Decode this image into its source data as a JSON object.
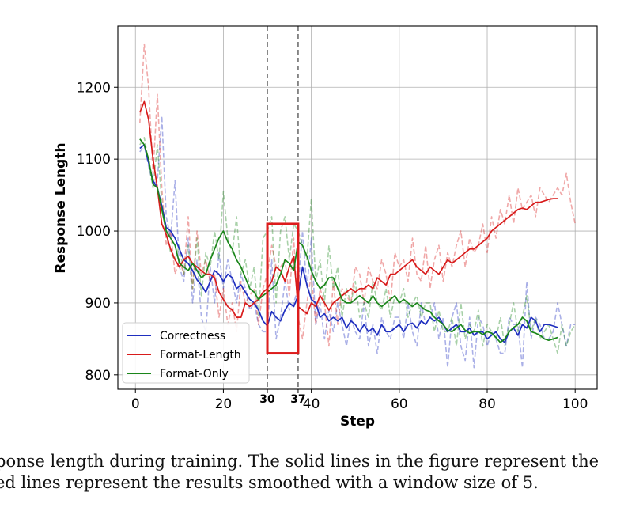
{
  "chart_data": {
    "type": "line",
    "xlabel": "Step",
    "ylabel": "Response Length",
    "xlim": [
      -4,
      105
    ],
    "ylim": [
      780,
      1285
    ],
    "x_ticks": [
      0,
      20,
      40,
      60,
      80,
      100
    ],
    "y_ticks": [
      800,
      900,
      1000,
      1100,
      1200
    ],
    "special_x_ticks": [
      30,
      37
    ],
    "vlines": [
      30,
      37
    ],
    "highlight_box": {
      "x": [
        30,
        37
      ],
      "y": [
        830,
        1010
      ],
      "color": "#dd1c1c"
    },
    "grid": true,
    "legend": {
      "placement": "lower-left",
      "entries": [
        "Correctness",
        "Format-Length",
        "Format-Only"
      ]
    },
    "series": [
      {
        "name": "Correctness",
        "color": "#1f2fbf",
        "smoothed_x": [
          1,
          2,
          3,
          4,
          5,
          6,
          7,
          8,
          9,
          10,
          11,
          12,
          13,
          14,
          15,
          16,
          17,
          18,
          19,
          20,
          21,
          22,
          23,
          24,
          25,
          26,
          27,
          28,
          29,
          30,
          31,
          32,
          33,
          34,
          35,
          36,
          37,
          38,
          39,
          40,
          41,
          42,
          43,
          44,
          45,
          46,
          47,
          48,
          49,
          50,
          51,
          52,
          53,
          54,
          55,
          56,
          57,
          58,
          59,
          60,
          61,
          62,
          63,
          64,
          65,
          66,
          67,
          68,
          69,
          70,
          71,
          72,
          73,
          74,
          75,
          76,
          77,
          78,
          79,
          80,
          81,
          82,
          83,
          84,
          85,
          86,
          87,
          88,
          89,
          90,
          91,
          92,
          93,
          94,
          95,
          96
        ],
        "smoothed_y": [
          1115,
          1120,
          1095,
          1070,
          1060,
          1035,
          1005,
          1000,
          990,
          975,
          960,
          955,
          945,
          932,
          925,
          915,
          930,
          945,
          940,
          930,
          940,
          935,
          920,
          925,
          915,
          905,
          900,
          890,
          875,
          868,
          888,
          880,
          875,
          890,
          900,
          895,
          910,
          950,
          925,
          905,
          900,
          880,
          885,
          875,
          880,
          875,
          880,
          865,
          875,
          870,
          860,
          870,
          860,
          865,
          855,
          870,
          860,
          860,
          865,
          870,
          860,
          870,
          872,
          865,
          875,
          870,
          880,
          875,
          880,
          870,
          860,
          865,
          870,
          860,
          860,
          865,
          855,
          860,
          860,
          850,
          855,
          860,
          850,
          845,
          860,
          865,
          855,
          870,
          865,
          880,
          875,
          860,
          870,
          870,
          868,
          866
        ],
        "raw_x": [
          1,
          2,
          3,
          4,
          5,
          6,
          7,
          8,
          9,
          10,
          11,
          12,
          13,
          14,
          15,
          16,
          17,
          18,
          19,
          20,
          21,
          22,
          23,
          24,
          25,
          26,
          27,
          28,
          29,
          30,
          31,
          32,
          33,
          34,
          35,
          36,
          37,
          38,
          39,
          40,
          41,
          42,
          43,
          44,
          45,
          46,
          47,
          48,
          49,
          50,
          51,
          52,
          53,
          54,
          55,
          56,
          57,
          58,
          59,
          60,
          61,
          62,
          63,
          64,
          65,
          66,
          67,
          68,
          69,
          70,
          71,
          72,
          73,
          74,
          75,
          76,
          77,
          78,
          79,
          80,
          81,
          82,
          83,
          84,
          85,
          86,
          87,
          88,
          89,
          90,
          91,
          92,
          93,
          94,
          95,
          96,
          97,
          98,
          99,
          100
        ],
        "raw_y": [
          1110,
          1120,
          1090,
          1065,
          1070,
          1160,
          1020,
          990,
          1070,
          950,
          930,
          990,
          900,
          960,
          880,
          860,
          950,
          900,
          970,
          920,
          960,
          930,
          900,
          940,
          920,
          890,
          900,
          870,
          860,
          860,
          960,
          850,
          880,
          930,
          890,
          900,
          920,
          1000,
          920,
          990,
          870,
          900,
          850,
          890,
          860,
          900,
          870,
          840,
          880,
          860,
          850,
          900,
          840,
          870,
          830,
          880,
          860,
          850,
          880,
          880,
          850,
          900,
          860,
          840,
          900,
          870,
          880,
          900,
          850,
          880,
          810,
          880,
          900,
          840,
          820,
          880,
          810,
          880,
          870,
          840,
          860,
          850,
          830,
          830,
          880,
          870,
          870,
          810,
          930,
          850,
          880,
          870,
          850,
          850,
          860,
          900,
          870,
          840,
          870,
          870
        ]
      },
      {
        "name": "Format-Length",
        "color": "#d81b1b",
        "smoothed_x": [
          1,
          2,
          3,
          4,
          5,
          6,
          7,
          8,
          9,
          10,
          11,
          12,
          13,
          14,
          15,
          16,
          17,
          18,
          19,
          20,
          21,
          22,
          23,
          24,
          25,
          26,
          27,
          28,
          29,
          30,
          31,
          32,
          33,
          34,
          35,
          36,
          37,
          38,
          39,
          40,
          41,
          42,
          43,
          44,
          45,
          46,
          47,
          48,
          49,
          50,
          51,
          52,
          53,
          54,
          55,
          56,
          57,
          58,
          59,
          60,
          61,
          62,
          63,
          64,
          65,
          66,
          67,
          68,
          69,
          70,
          71,
          72,
          73,
          74,
          75,
          76,
          77,
          78,
          79,
          80,
          81,
          82,
          83,
          84,
          85,
          86,
          87,
          88,
          89,
          90,
          91,
          92,
          93,
          94,
          95,
          96
        ],
        "smoothed_y": [
          1165,
          1180,
          1155,
          1100,
          1060,
          1010,
          995,
          975,
          960,
          950,
          960,
          965,
          955,
          950,
          945,
          940,
          940,
          935,
          915,
          905,
          895,
          890,
          880,
          880,
          900,
          895,
          900,
          905,
          915,
          920,
          930,
          950,
          945,
          930,
          950,
          965,
          895,
          890,
          885,
          900,
          895,
          910,
          900,
          890,
          900,
          905,
          910,
          915,
          920,
          915,
          920,
          920,
          925,
          920,
          935,
          930,
          925,
          940,
          940,
          945,
          950,
          955,
          960,
          950,
          945,
          940,
          950,
          945,
          940,
          950,
          960,
          955,
          960,
          965,
          970,
          975,
          975,
          980,
          985,
          990,
          1000,
          1005,
          1010,
          1015,
          1020,
          1025,
          1030,
          1032,
          1030,
          1035,
          1040,
          1040,
          1042,
          1044,
          1045,
          1045
        ],
        "raw_x": [
          1,
          2,
          3,
          4,
          5,
          6,
          7,
          8,
          9,
          10,
          11,
          12,
          13,
          14,
          15,
          16,
          17,
          18,
          19,
          20,
          21,
          22,
          23,
          24,
          25,
          26,
          27,
          28,
          29,
          30,
          31,
          32,
          33,
          34,
          35,
          36,
          37,
          38,
          39,
          40,
          41,
          42,
          43,
          44,
          45,
          46,
          47,
          48,
          49,
          50,
          51,
          52,
          53,
          54,
          55,
          56,
          57,
          58,
          59,
          60,
          61,
          62,
          63,
          64,
          65,
          66,
          67,
          68,
          69,
          70,
          71,
          72,
          73,
          74,
          75,
          76,
          77,
          78,
          79,
          80,
          81,
          82,
          83,
          84,
          85,
          86,
          87,
          88,
          89,
          90,
          91,
          92,
          93,
          94,
          95,
          96,
          97,
          98,
          99,
          100
        ],
        "raw_y": [
          1150,
          1260,
          1200,
          1080,
          1190,
          1060,
          980,
          1000,
          940,
          960,
          940,
          1020,
          920,
          1000,
          940,
          960,
          930,
          940,
          880,
          920,
          870,
          900,
          860,
          930,
          900,
          910,
          920,
          870,
          920,
          940,
          980,
          950,
          950,
          960,
          910,
          990,
          880,
          850,
          900,
          940,
          870,
          920,
          900,
          840,
          930,
          870,
          920,
          910,
          900,
          950,
          940,
          900,
          950,
          930,
          920,
          960,
          940,
          900,
          970,
          950,
          960,
          930,
          990,
          940,
          930,
          980,
          920,
          960,
          980,
          930,
          970,
          950,
          980,
          1000,
          950,
          990,
          970,
          980,
          1010,
          970,
          1020,
          990,
          1030,
          1010,
          1050,
          1010,
          1060,
          1030,
          1040,
          1050,
          1020,
          1060,
          1050,
          1040,
          1050,
          1060,
          1050,
          1080,
          1040,
          1010
        ]
      },
      {
        "name": "Format-Only",
        "color": "#1a861a",
        "smoothed_x": [
          1,
          2,
          3,
          4,
          5,
          6,
          7,
          8,
          9,
          10,
          11,
          12,
          13,
          14,
          15,
          16,
          17,
          18,
          19,
          20,
          21,
          22,
          23,
          24,
          25,
          26,
          27,
          28,
          29,
          30,
          31,
          32,
          33,
          34,
          35,
          36,
          37,
          38,
          39,
          40,
          41,
          42,
          43,
          44,
          45,
          46,
          47,
          48,
          49,
          50,
          51,
          52,
          53,
          54,
          55,
          56,
          57,
          58,
          59,
          60,
          61,
          62,
          63,
          64,
          65,
          66,
          67,
          68,
          69,
          70,
          71,
          72,
          73,
          74,
          75,
          76,
          77,
          78,
          79,
          80,
          81,
          82,
          83,
          84,
          85,
          86,
          87,
          88,
          89,
          90,
          91,
          92,
          93,
          94,
          95,
          96
        ],
        "smoothed_y": [
          1128,
          1120,
          1100,
          1065,
          1060,
          1030,
          1000,
          990,
          980,
          955,
          950,
          945,
          955,
          945,
          935,
          940,
          960,
          975,
          990,
          1000,
          985,
          975,
          960,
          950,
          935,
          920,
          915,
          905,
          910,
          915,
          920,
          925,
          940,
          960,
          955,
          945,
          985,
          980,
          965,
          945,
          930,
          920,
          925,
          935,
          935,
          920,
          905,
          900,
          900,
          905,
          910,
          905,
          900,
          910,
          900,
          895,
          900,
          905,
          910,
          900,
          905,
          900,
          895,
          900,
          895,
          890,
          888,
          880,
          875,
          870,
          862,
          860,
          865,
          870,
          862,
          858,
          860,
          860,
          856,
          860,
          858,
          852,
          845,
          850,
          860,
          866,
          870,
          880,
          875,
          860,
          858,
          855,
          850,
          848,
          850,
          852
        ],
        "raw_x": [
          1,
          2,
          3,
          4,
          5,
          6,
          7,
          8,
          9,
          10,
          11,
          12,
          13,
          14,
          15,
          16,
          17,
          18,
          19,
          20,
          21,
          22,
          23,
          24,
          25,
          26,
          27,
          28,
          29,
          30,
          31,
          32,
          33,
          34,
          35,
          36,
          37,
          38,
          39,
          40,
          41,
          42,
          43,
          44,
          45,
          46,
          47,
          48,
          49,
          50,
          51,
          52,
          53,
          54,
          55,
          56,
          57,
          58,
          59,
          60,
          61,
          62,
          63,
          64,
          65,
          66,
          67,
          68,
          69,
          70,
          71,
          72,
          73,
          74,
          75,
          76,
          77,
          78,
          79,
          80,
          81,
          82,
          83,
          84,
          85,
          86,
          87,
          88,
          89,
          90,
          91,
          92,
          93,
          94,
          95,
          96,
          97,
          98,
          99,
          100
        ],
        "raw_y": [
          1120,
          1130,
          1095,
          1060,
          1120,
          1040,
          1000,
          970,
          960,
          980,
          940,
          980,
          920,
          990,
          910,
          970,
          950,
          1000,
          960,
          1055,
          990,
          970,
          1020,
          940,
          960,
          920,
          950,
          880,
          990,
          1000,
          1020,
          900,
          1000,
          1020,
          960,
          1010,
          1000,
          980,
          960,
          1045,
          930,
          960,
          900,
          980,
          920,
          950,
          880,
          920,
          900,
          930,
          880,
          900,
          880,
          930,
          900,
          890,
          920,
          880,
          910,
          900,
          920,
          880,
          900,
          910,
          880,
          900,
          900,
          860,
          890,
          860,
          860,
          880,
          840,
          900,
          850,
          870,
          860,
          890,
          840,
          870,
          860,
          850,
          880,
          840,
          870,
          900,
          860,
          880,
          910,
          860,
          880,
          850,
          860,
          870,
          850,
          830,
          870,
          840,
          860,
          870
        ]
      }
    ]
  },
  "caption": {
    "line1": "ponse length during training. The solid lines in the figure represent the",
    "line2": "ed lines represent the results smoothed with a window size of 5."
  }
}
